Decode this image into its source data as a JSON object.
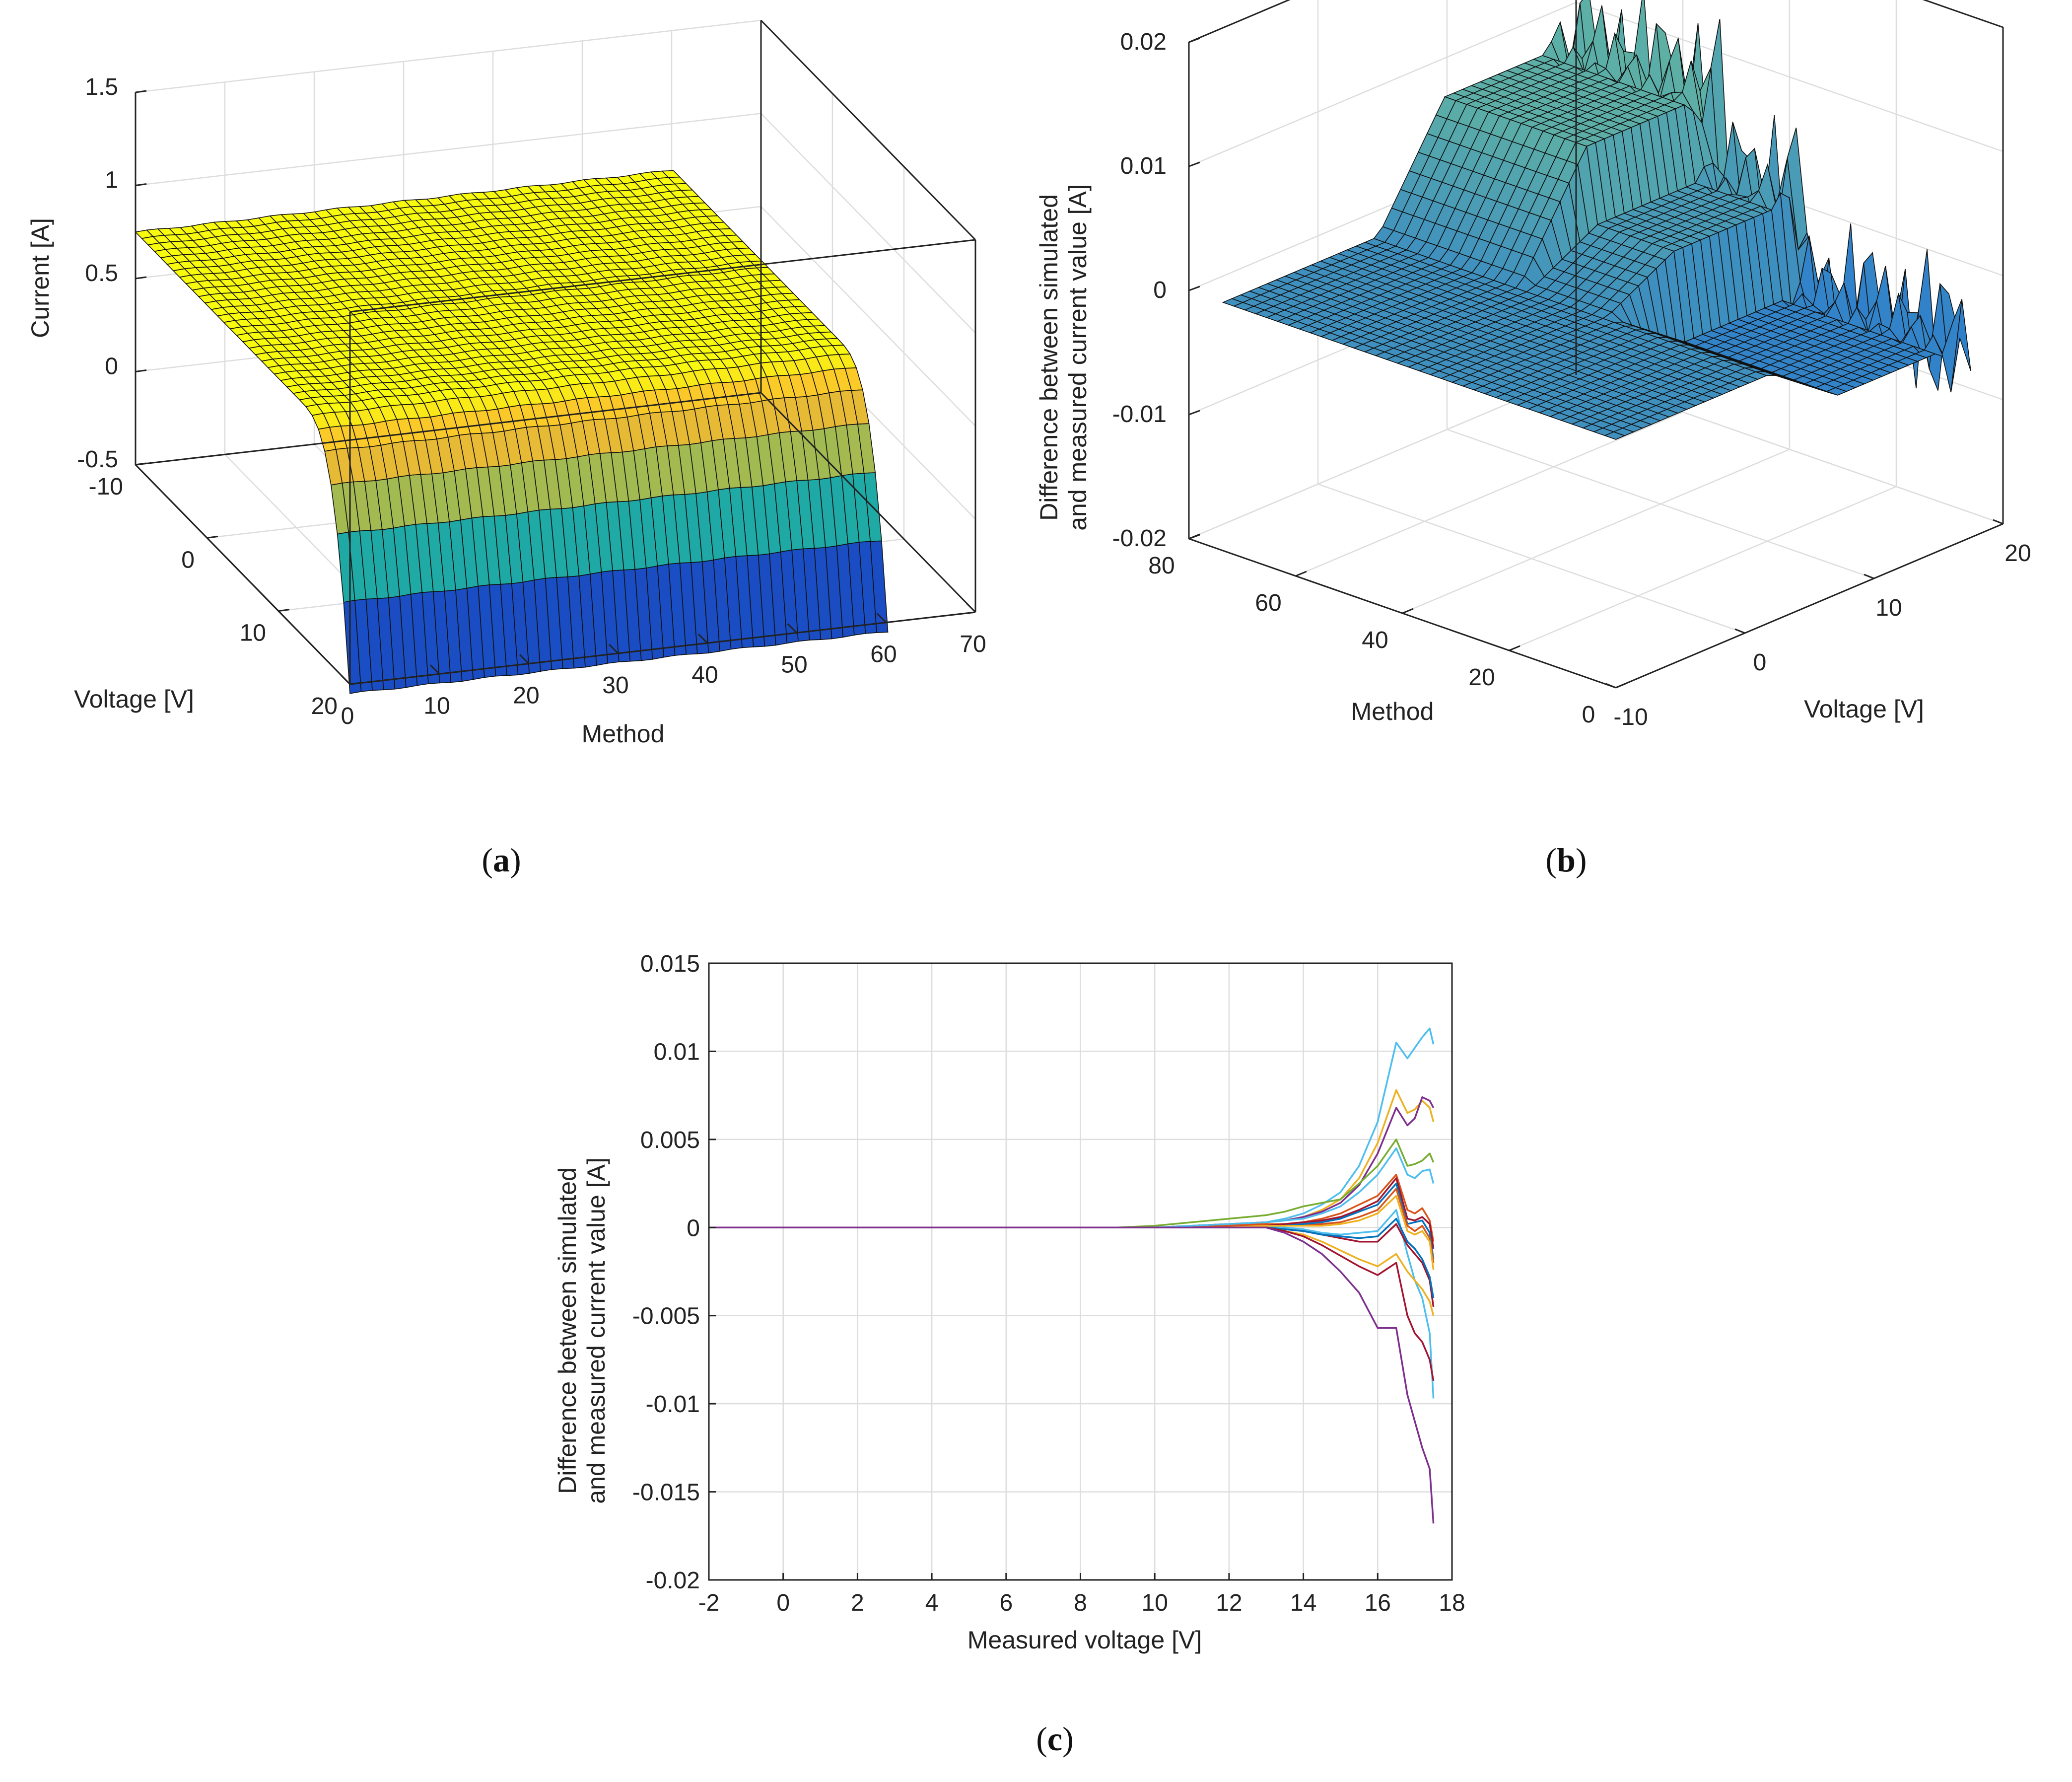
{
  "colors": {
    "series": [
      "#0072BD",
      "#D95319",
      "#EDB120",
      "#7E2F8E",
      "#77AC30",
      "#4DBEEE",
      "#A2142F"
    ],
    "surface_low": "#352a87",
    "surface_mid": "#21b1a0",
    "surface_high": "#f9fb0e",
    "error_surface": "#2fa8c8"
  },
  "panels": {
    "a": {
      "caption_open": "(",
      "caption_letter": "a",
      "caption_close": ")"
    },
    "b": {
      "caption_open": "(",
      "caption_letter": "b",
      "caption_close": ")"
    },
    "c": {
      "caption_open": "(",
      "caption_letter": "c",
      "caption_close": ")"
    }
  },
  "chart_data": [
    {
      "id": "a",
      "type": "surface3d",
      "xlabel": "Method",
      "ylabel": "Voltage [V]",
      "zlabel": "Current [A]",
      "xlim": [
        0,
        70
      ],
      "ylim": [
        -10,
        20
      ],
      "zlim": [
        -0.5,
        1.5
      ],
      "xticks": [
        "0",
        "10",
        "20",
        "30",
        "40",
        "50",
        "60",
        "70"
      ],
      "yticks": [
        "-10",
        "0",
        "10",
        "20"
      ],
      "zticks": [
        "-0.5",
        "0",
        "0.5",
        "1",
        "1.5"
      ],
      "plateau_current": 0.75,
      "knee_voltage": 16,
      "min_current": -0.55
    },
    {
      "id": "b",
      "type": "surface3d",
      "xlabel": "Voltage [V]",
      "ylabel": "Method",
      "zlabel": "Difference between simulated and measured current value [A]",
      "zlabel_lines": [
        "Difference between simulated",
        "and measured current value [A]"
      ],
      "xlim": [
        -10,
        20
      ],
      "ylim": [
        0,
        80
      ],
      "zlim": [
        -0.02,
        0.02
      ],
      "xticks": [
        "-10",
        "0",
        "10",
        "20"
      ],
      "yticks": [
        "0",
        "20",
        "40",
        "60",
        "80"
      ],
      "zticks": [
        "-0.02",
        "-0.01",
        "0",
        "0.01",
        "0.02"
      ]
    },
    {
      "id": "c",
      "type": "line",
      "xlabel": "Measured voltage [V]",
      "ylabel_lines": [
        "Difference between simulated",
        "and measured current value [A]"
      ],
      "xlim": [
        -2,
        18
      ],
      "ylim": [
        -0.02,
        0.015
      ],
      "grid": true,
      "xticks": [
        "-2",
        "0",
        "2",
        "4",
        "6",
        "8",
        "10",
        "12",
        "14",
        "16",
        "18"
      ],
      "yticks": [
        "-0.02",
        "-0.015",
        "-0.01",
        "-0.005",
        "0",
        "0.005",
        "0.01",
        "0.015"
      ],
      "x": [
        -2.0,
        0.0,
        2.0,
        4.0,
        6.0,
        8.0,
        9.0,
        10.0,
        11.0,
        12.0,
        13.0,
        13.5,
        14.0,
        14.5,
        15.0,
        15.5,
        16.0,
        16.5,
        16.8,
        17.0,
        17.2,
        17.4,
        17.5
      ],
      "series": [
        {
          "name": "s1",
          "color": "#4DBEEE",
          "values": [
            0,
            0,
            0,
            0,
            0,
            0,
            0,
            0,
            0.0001,
            0.0002,
            0.0003,
            0.0005,
            0.0008,
            0.0013,
            0.002,
            0.0035,
            0.006,
            0.0105,
            0.0096,
            0.0102,
            0.0108,
            0.0113,
            0.0104
          ]
        },
        {
          "name": "s2",
          "color": "#EDB120",
          "values": [
            0,
            0,
            0,
            0,
            0,
            0,
            0,
            0,
            0.0001,
            0.0002,
            0.0003,
            0.0004,
            0.0006,
            0.001,
            0.0016,
            0.0028,
            0.0048,
            0.0078,
            0.0065,
            0.0067,
            0.0072,
            0.0068,
            0.006
          ]
        },
        {
          "name": "s3",
          "color": "#7E2F8E",
          "values": [
            0,
            0,
            0,
            0,
            0,
            0,
            0,
            0,
            0.0001,
            0.0002,
            0.0003,
            0.0004,
            0.0006,
            0.0009,
            0.0014,
            0.0024,
            0.0042,
            0.0068,
            0.0058,
            0.0062,
            0.0074,
            0.0072,
            0.0068
          ]
        },
        {
          "name": "s4",
          "color": "#77AC30",
          "values": [
            0,
            0,
            0,
            0,
            0,
            0,
            0,
            0.0001,
            0.0003,
            0.0005,
            0.0007,
            0.0009,
            0.0012,
            0.0014,
            0.0016,
            0.0025,
            0.0035,
            0.005,
            0.0035,
            0.0036,
            0.0038,
            0.0042,
            0.0037
          ]
        },
        {
          "name": "s5",
          "color": "#4DBEEE",
          "values": [
            0,
            0,
            0,
            0,
            0,
            0,
            0,
            0,
            0.0001,
            0.0002,
            0.0003,
            0.0004,
            0.0005,
            0.0008,
            0.0012,
            0.002,
            0.003,
            0.0045,
            0.003,
            0.0028,
            0.0032,
            0.0033,
            0.0025
          ]
        },
        {
          "name": "s6",
          "color": "#D95319",
          "values": [
            0,
            0,
            0,
            0,
            0,
            0,
            0,
            0,
            0,
            0.0001,
            0.0002,
            0.0002,
            0.0003,
            0.0005,
            0.0008,
            0.0013,
            0.0018,
            0.003,
            0.001,
            0.0008,
            0.0011,
            0.0004,
            -0.0008
          ]
        },
        {
          "name": "s7",
          "color": "#A2142F",
          "values": [
            0,
            0,
            0,
            0,
            0,
            0,
            0,
            0,
            0,
            0.0001,
            0.0001,
            0.0002,
            0.0003,
            0.0004,
            0.0006,
            0.001,
            0.0015,
            0.0028,
            0.0005,
            0.0004,
            0.0006,
            0.0002,
            -0.0012
          ]
        },
        {
          "name": "s8",
          "color": "#0072BD",
          "values": [
            0,
            0,
            0,
            0,
            0,
            0,
            0,
            0,
            0,
            0.0001,
            0.0001,
            0.0001,
            0.0002,
            0.0003,
            0.0005,
            0.0009,
            0.0013,
            0.0025,
            0.0002,
            0.0003,
            0.0004,
            -0.0003,
            -0.0018
          ]
        },
        {
          "name": "s9",
          "color": "#D95319",
          "values": [
            0,
            0,
            0,
            0,
            0,
            0,
            0,
            0,
            0,
            0.0001,
            0.0001,
            0.0001,
            0.0001,
            0.0002,
            0.0003,
            0.0006,
            0.001,
            0.0022,
            0.0001,
            -0.0002,
            0.0001,
            -0.0006,
            -0.002
          ]
        },
        {
          "name": "s10",
          "color": "#EDB120",
          "values": [
            0,
            0,
            0,
            0,
            0,
            0,
            0,
            0,
            0,
            0,
            0.0001,
            0.0001,
            0.0001,
            0.0001,
            0.0002,
            0.0004,
            0.0008,
            0.0018,
            -0.0002,
            -0.0004,
            -0.0002,
            -0.0008,
            -0.0024
          ]
        },
        {
          "name": "s11",
          "color": "#4DBEEE",
          "values": [
            0,
            0,
            0,
            0,
            0,
            0,
            0,
            0,
            0,
            0,
            0,
            0,
            -0.0001,
            -0.0003,
            -0.0004,
            -0.0003,
            -0.0002,
            0.001,
            -0.0015,
            -0.003,
            -0.004,
            -0.006,
            -0.0097
          ]
        },
        {
          "name": "s12",
          "color": "#A2142F",
          "values": [
            0,
            0,
            0,
            0,
            0,
            0,
            0,
            0,
            0,
            0,
            0,
            -0.0001,
            -0.0002,
            -0.0004,
            -0.0006,
            -0.0008,
            -0.0008,
            0.0002,
            -0.001,
            -0.0015,
            -0.002,
            -0.003,
            -0.0045
          ]
        },
        {
          "name": "s13",
          "color": "#0072BD",
          "values": [
            0,
            0,
            0,
            0,
            0,
            0,
            0,
            0,
            0,
            0,
            0,
            -0.0001,
            -0.0002,
            -0.0004,
            -0.0005,
            -0.0006,
            -0.0005,
            0.0005,
            -0.0008,
            -0.0012,
            -0.0018,
            -0.0028,
            -0.004
          ]
        },
        {
          "name": "s14",
          "color": "#EDB120",
          "values": [
            0,
            0,
            0,
            0,
            0,
            0,
            0,
            0,
            0,
            0,
            0,
            -0.0002,
            -0.0004,
            -0.0008,
            -0.0013,
            -0.0018,
            -0.0022,
            -0.0015,
            -0.0025,
            -0.003,
            -0.0035,
            -0.0042,
            -0.005
          ]
        },
        {
          "name": "s15",
          "color": "#A2142F",
          "values": [
            0,
            0,
            0,
            0,
            0,
            0,
            0,
            0,
            0,
            0,
            0,
            -0.0002,
            -0.0005,
            -0.001,
            -0.0016,
            -0.0022,
            -0.0027,
            -0.002,
            -0.005,
            -0.006,
            -0.0065,
            -0.0075,
            -0.0087
          ]
        },
        {
          "name": "s16",
          "color": "#7E2F8E",
          "values": [
            0,
            0,
            0,
            0,
            0,
            0,
            0,
            0,
            0,
            0,
            0,
            -0.0003,
            -0.0008,
            -0.0015,
            -0.0025,
            -0.0037,
            -0.0057,
            -0.0057,
            -0.0095,
            -0.011,
            -0.0125,
            -0.0137,
            -0.0168
          ]
        }
      ]
    }
  ]
}
